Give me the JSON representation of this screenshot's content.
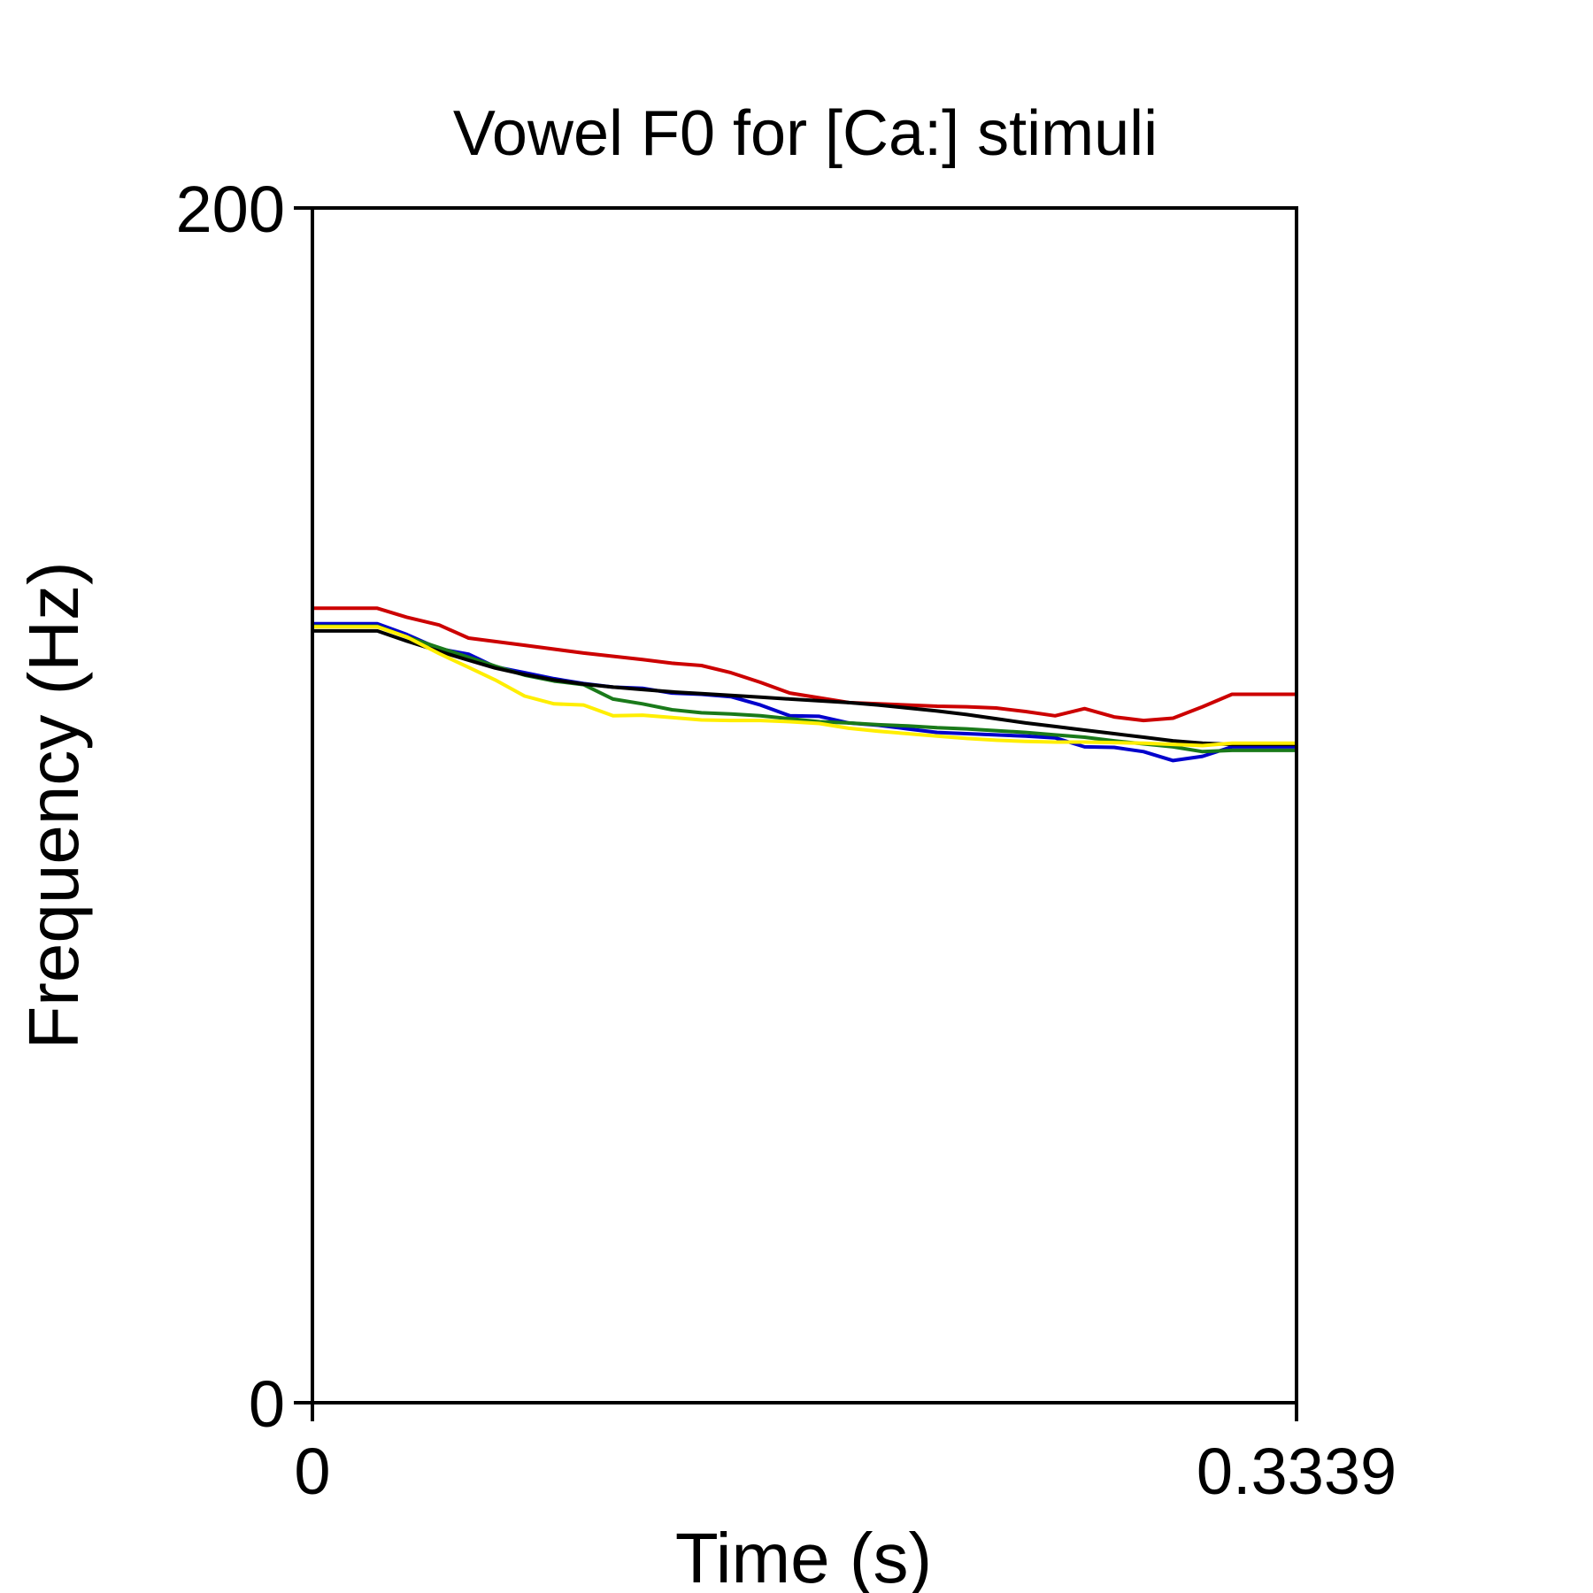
{
  "chart_data": {
    "type": "line",
    "title": "Vowel F0 for [Ca:] stimuli",
    "xlabel": "Time (s)",
    "ylabel": "Frequency (Hz)",
    "xlim": [
      0,
      0.3339
    ],
    "ylim": [
      0,
      200
    ],
    "x_tick_labels": [
      "0",
      "0.3339"
    ],
    "y_tick_labels": [
      "0",
      "200"
    ],
    "grid": false,
    "legend": "none",
    "series": [
      {
        "color": "#cc0000",
        "x": [
          0,
          0.022,
          0.032,
          0.043,
          0.053,
          0.072,
          0.092,
          0.112,
          0.122,
          0.132,
          0.142,
          0.152,
          0.162,
          0.172,
          0.182,
          0.192,
          0.212,
          0.222,
          0.232,
          0.242,
          0.252,
          0.262,
          0.272,
          0.282,
          0.292,
          0.302,
          0.312,
          0.3339
        ],
        "y": [
          133.0,
          133.0,
          131.5,
          130.2,
          128.0,
          126.8,
          125.5,
          124.4,
          123.8,
          123.4,
          122.2,
          120.6,
          118.8,
          118.0,
          117.2,
          117.0,
          116.6,
          116.5,
          116.3,
          115.7,
          115.0,
          116.2,
          114.8,
          114.2,
          114.6,
          116.5,
          118.6,
          118.6
        ]
      },
      {
        "color": "#0000cc",
        "x": [
          0,
          0.022,
          0.032,
          0.043,
          0.053,
          0.062,
          0.072,
          0.082,
          0.092,
          0.102,
          0.112,
          0.122,
          0.132,
          0.142,
          0.152,
          0.162,
          0.172,
          0.182,
          0.192,
          0.202,
          0.212,
          0.222,
          0.232,
          0.242,
          0.252,
          0.262,
          0.272,
          0.282,
          0.292,
          0.302,
          0.312,
          0.3339
        ],
        "y": [
          130.4,
          130.4,
          128.6,
          126.2,
          125.3,
          123.2,
          122.2,
          121.2,
          120.4,
          119.8,
          119.6,
          118.8,
          118.6,
          118.2,
          116.8,
          115.0,
          114.9,
          113.8,
          113.4,
          112.8,
          112.2,
          112.0,
          111.8,
          111.6,
          111.3,
          109.8,
          109.7,
          109.0,
          107.5,
          108.2,
          109.8,
          109.8
        ]
      },
      {
        "color": "#1a7a1a",
        "x": [
          0,
          0.022,
          0.032,
          0.043,
          0.053,
          0.062,
          0.072,
          0.082,
          0.092,
          0.102,
          0.112,
          0.122,
          0.132,
          0.142,
          0.152,
          0.162,
          0.172,
          0.182,
          0.192,
          0.202,
          0.212,
          0.222,
          0.232,
          0.242,
          0.252,
          0.262,
          0.272,
          0.282,
          0.292,
          0.302,
          0.312,
          0.3339
        ],
        "y": [
          130.0,
          130.0,
          128.2,
          126.4,
          124.8,
          123.3,
          121.8,
          120.8,
          120.2,
          117.8,
          117.0,
          116.0,
          115.5,
          115.3,
          115.0,
          114.5,
          114.0,
          113.8,
          113.5,
          113.3,
          113.0,
          112.8,
          112.5,
          112.2,
          111.8,
          111.4,
          110.8,
          110.3,
          109.8,
          109.0,
          109.2,
          109.2
        ]
      },
      {
        "color": "#000000",
        "x": [
          0,
          0.022,
          0.032,
          0.043,
          0.053,
          0.062,
          0.072,
          0.082,
          0.092,
          0.102,
          0.112,
          0.122,
          0.132,
          0.142,
          0.152,
          0.162,
          0.172,
          0.182,
          0.192,
          0.202,
          0.212,
          0.222,
          0.232,
          0.242,
          0.252,
          0.262,
          0.272,
          0.282,
          0.292,
          0.302,
          0.312,
          0.3339
        ],
        "y": [
          129.2,
          129.2,
          127.5,
          125.8,
          124.3,
          123.0,
          121.9,
          121.0,
          120.3,
          119.8,
          119.4,
          119.0,
          118.7,
          118.4,
          118.1,
          117.8,
          117.5,
          117.2,
          116.8,
          116.3,
          115.8,
          115.2,
          114.5,
          113.8,
          113.2,
          112.6,
          112.0,
          111.4,
          110.8,
          110.4,
          110.2,
          110.2
        ]
      },
      {
        "color": "#ffee00",
        "x": [
          0,
          0.022,
          0.032,
          0.043,
          0.053,
          0.062,
          0.072,
          0.082,
          0.092,
          0.102,
          0.112,
          0.122,
          0.132,
          0.142,
          0.152,
          0.162,
          0.172,
          0.182,
          0.192,
          0.202,
          0.212,
          0.222,
          0.232,
          0.242,
          0.252,
          0.262,
          0.272,
          0.282,
          0.292,
          0.302,
          0.312,
          0.3339
        ],
        "y": [
          129.9,
          129.9,
          128.2,
          125.4,
          123.1,
          121.0,
          118.3,
          117.0,
          116.8,
          115.0,
          115.1,
          114.7,
          114.3,
          114.2,
          114.2,
          114.0,
          113.7,
          112.9,
          112.4,
          112.0,
          111.6,
          111.2,
          110.9,
          110.7,
          110.6,
          110.6,
          110.5,
          110.4,
          110.2,
          110.0,
          110.4,
          110.4
        ]
      }
    ]
  }
}
